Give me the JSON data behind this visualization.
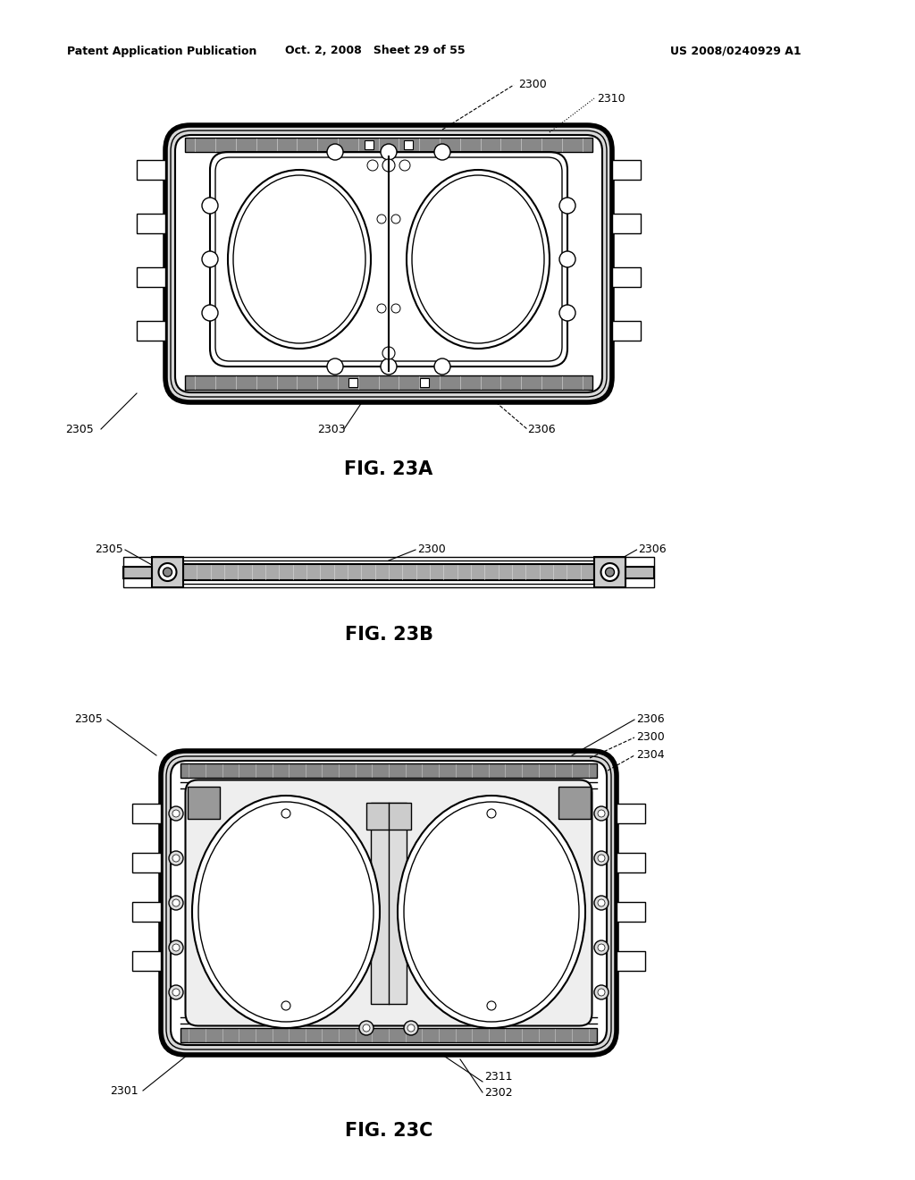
{
  "bg_color": "#ffffff",
  "line_color": "#000000",
  "header_left": "Patent Application Publication",
  "header_center": "Oct. 2, 2008   Sheet 29 of 55",
  "header_right": "US 2008/0240929 A1",
  "fig23a_label": "FIG. 23A",
  "fig23b_label": "FIG. 23B",
  "fig23c_label": "FIG. 23C"
}
